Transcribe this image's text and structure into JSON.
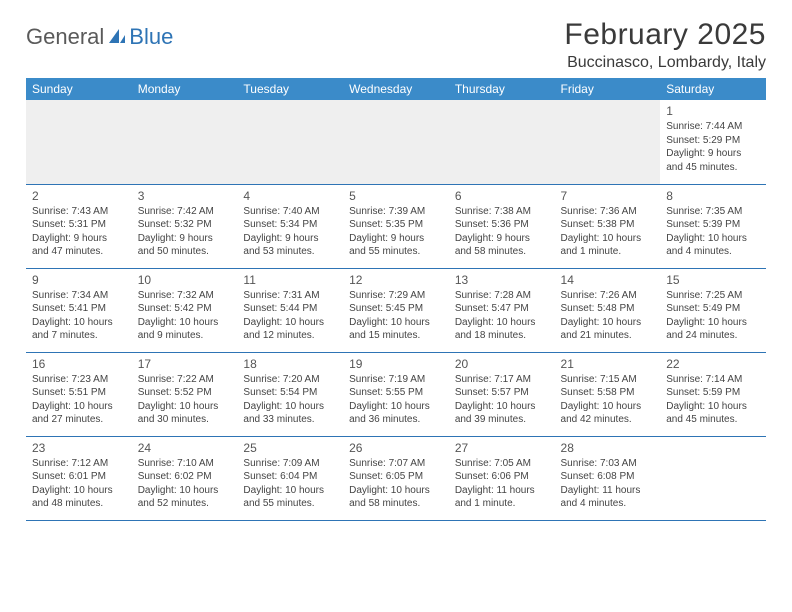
{
  "logo": {
    "general": "General",
    "blue": "Blue"
  },
  "title": "February 2025",
  "location": "Buccinasco, Lombardy, Italy",
  "colors": {
    "header_bg": "#3b8bc9",
    "rule": "#2e74b5",
    "blank": "#efefef"
  },
  "weekdays": [
    "Sunday",
    "Monday",
    "Tuesday",
    "Wednesday",
    "Thursday",
    "Friday",
    "Saturday"
  ],
  "weeks": [
    [
      null,
      null,
      null,
      null,
      null,
      null,
      {
        "d": "1",
        "sr": "7:44 AM",
        "ss": "5:29 PM",
        "dl": "9 hours and 45 minutes."
      }
    ],
    [
      {
        "d": "2",
        "sr": "7:43 AM",
        "ss": "5:31 PM",
        "dl": "9 hours and 47 minutes."
      },
      {
        "d": "3",
        "sr": "7:42 AM",
        "ss": "5:32 PM",
        "dl": "9 hours and 50 minutes."
      },
      {
        "d": "4",
        "sr": "7:40 AM",
        "ss": "5:34 PM",
        "dl": "9 hours and 53 minutes."
      },
      {
        "d": "5",
        "sr": "7:39 AM",
        "ss": "5:35 PM",
        "dl": "9 hours and 55 minutes."
      },
      {
        "d": "6",
        "sr": "7:38 AM",
        "ss": "5:36 PM",
        "dl": "9 hours and 58 minutes."
      },
      {
        "d": "7",
        "sr": "7:36 AM",
        "ss": "5:38 PM",
        "dl": "10 hours and 1 minute."
      },
      {
        "d": "8",
        "sr": "7:35 AM",
        "ss": "5:39 PM",
        "dl": "10 hours and 4 minutes."
      }
    ],
    [
      {
        "d": "9",
        "sr": "7:34 AM",
        "ss": "5:41 PM",
        "dl": "10 hours and 7 minutes."
      },
      {
        "d": "10",
        "sr": "7:32 AM",
        "ss": "5:42 PM",
        "dl": "10 hours and 9 minutes."
      },
      {
        "d": "11",
        "sr": "7:31 AM",
        "ss": "5:44 PM",
        "dl": "10 hours and 12 minutes."
      },
      {
        "d": "12",
        "sr": "7:29 AM",
        "ss": "5:45 PM",
        "dl": "10 hours and 15 minutes."
      },
      {
        "d": "13",
        "sr": "7:28 AM",
        "ss": "5:47 PM",
        "dl": "10 hours and 18 minutes."
      },
      {
        "d": "14",
        "sr": "7:26 AM",
        "ss": "5:48 PM",
        "dl": "10 hours and 21 minutes."
      },
      {
        "d": "15",
        "sr": "7:25 AM",
        "ss": "5:49 PM",
        "dl": "10 hours and 24 minutes."
      }
    ],
    [
      {
        "d": "16",
        "sr": "7:23 AM",
        "ss": "5:51 PM",
        "dl": "10 hours and 27 minutes."
      },
      {
        "d": "17",
        "sr": "7:22 AM",
        "ss": "5:52 PM",
        "dl": "10 hours and 30 minutes."
      },
      {
        "d": "18",
        "sr": "7:20 AM",
        "ss": "5:54 PM",
        "dl": "10 hours and 33 minutes."
      },
      {
        "d": "19",
        "sr": "7:19 AM",
        "ss": "5:55 PM",
        "dl": "10 hours and 36 minutes."
      },
      {
        "d": "20",
        "sr": "7:17 AM",
        "ss": "5:57 PM",
        "dl": "10 hours and 39 minutes."
      },
      {
        "d": "21",
        "sr": "7:15 AM",
        "ss": "5:58 PM",
        "dl": "10 hours and 42 minutes."
      },
      {
        "d": "22",
        "sr": "7:14 AM",
        "ss": "5:59 PM",
        "dl": "10 hours and 45 minutes."
      }
    ],
    [
      {
        "d": "23",
        "sr": "7:12 AM",
        "ss": "6:01 PM",
        "dl": "10 hours and 48 minutes."
      },
      {
        "d": "24",
        "sr": "7:10 AM",
        "ss": "6:02 PM",
        "dl": "10 hours and 52 minutes."
      },
      {
        "d": "25",
        "sr": "7:09 AM",
        "ss": "6:04 PM",
        "dl": "10 hours and 55 minutes."
      },
      {
        "d": "26",
        "sr": "7:07 AM",
        "ss": "6:05 PM",
        "dl": "10 hours and 58 minutes."
      },
      {
        "d": "27",
        "sr": "7:05 AM",
        "ss": "6:06 PM",
        "dl": "11 hours and 1 minute."
      },
      {
        "d": "28",
        "sr": "7:03 AM",
        "ss": "6:08 PM",
        "dl": "11 hours and 4 minutes."
      },
      null
    ]
  ],
  "labels": {
    "sunrise": "Sunrise:",
    "sunset": "Sunset:",
    "daylight": "Daylight:"
  }
}
